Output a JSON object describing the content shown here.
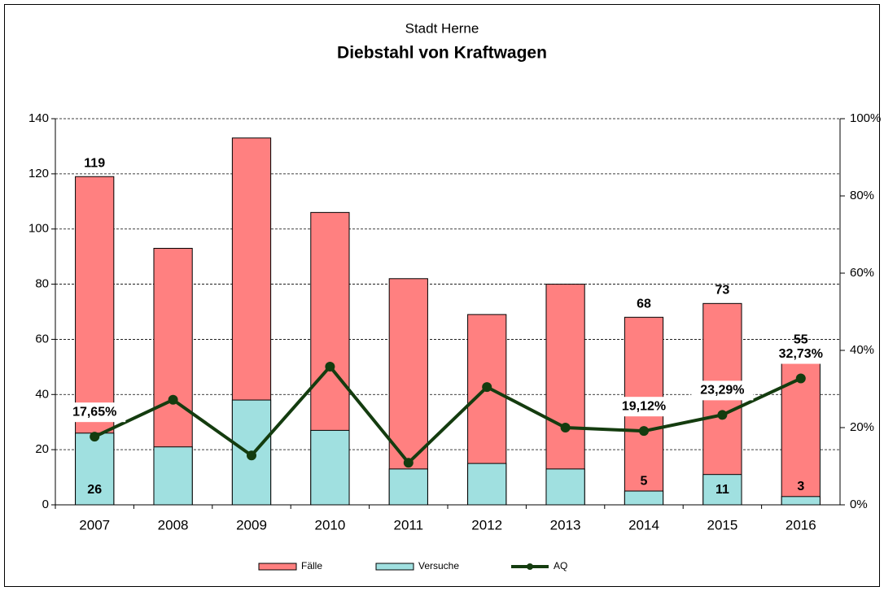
{
  "chart_data": {
    "type": "bar",
    "subtitle": "Stadt Herne",
    "title": "Diebstahl von Kraftwagen",
    "categories": [
      "2007",
      "2008",
      "2009",
      "2010",
      "2011",
      "2012",
      "2013",
      "2014",
      "2015",
      "2016"
    ],
    "overlap": true,
    "series": [
      {
        "name": "Fälle",
        "color": "#ff8080",
        "values": [
          119,
          93,
          133,
          106,
          82,
          69,
          80,
          68,
          73,
          55
        ],
        "value_labels": [
          "119",
          null,
          null,
          null,
          null,
          null,
          null,
          "68",
          "73",
          "55"
        ]
      },
      {
        "name": "Versuche",
        "color": "#a0e0e0",
        "values": [
          26,
          21,
          38,
          27,
          13,
          15,
          13,
          5,
          11,
          3
        ],
        "value_labels": [
          "26",
          null,
          null,
          null,
          null,
          null,
          null,
          "5",
          "11",
          "3"
        ]
      },
      {
        "name": "AQ",
        "type": "line",
        "axis": "y2",
        "color": "#143c0f",
        "values": [
          17.65,
          27.2,
          12.8,
          35.8,
          10.9,
          30.5,
          20,
          19.12,
          23.29,
          32.73
        ],
        "value_labels": [
          "17,65%",
          null,
          null,
          null,
          null,
          null,
          null,
          "19,12%",
          "23,29%",
          "32,73%"
        ]
      }
    ],
    "ylim": [
      0,
      140
    ],
    "yticks": [
      0,
      20,
      40,
      60,
      80,
      100,
      120,
      140
    ],
    "y2lim": [
      0,
      100
    ],
    "y2ticks": [
      {
        "value": 0,
        "label": "0%"
      },
      {
        "value": 20,
        "label": "20%"
      },
      {
        "value": 40,
        "label": "40%"
      },
      {
        "value": 60,
        "label": "60%"
      },
      {
        "value": 80,
        "label": "80%"
      },
      {
        "value": 100,
        "label": "100%"
      }
    ],
    "grid": true,
    "legend": "bottom"
  }
}
